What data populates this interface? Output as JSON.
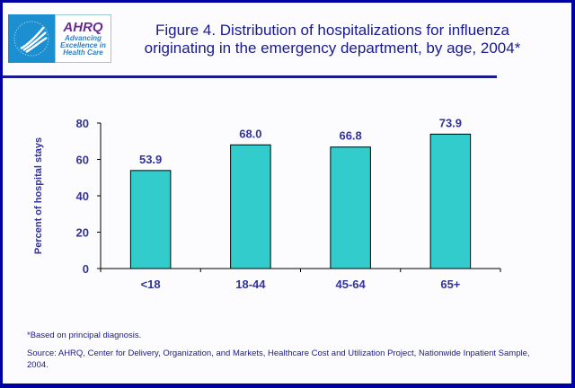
{
  "header": {
    "logo_text": "AHRQ Advancing Excellence in Health Care",
    "title": "Figure 4. Distribution of hospitalizations for influenza originating in the emergency department, by age, 2004*"
  },
  "chart_data": {
    "type": "bar",
    "title": "Figure 4. Distribution of hospitalizations for influenza originating in the emergency department, by age, 2004*",
    "xlabel": "",
    "ylabel": "Percent of hospital stays",
    "categories": [
      "<18",
      "18-44",
      "45-64",
      "65+"
    ],
    "values": [
      53.9,
      68.0,
      66.8,
      73.9
    ],
    "value_labels": [
      "53.9",
      "68.0",
      "66.8",
      "73.9"
    ],
    "ylim": [
      0,
      80
    ],
    "yticks": [
      0,
      20,
      40,
      60,
      80
    ],
    "grid": false,
    "colors": {
      "bar": "#33cccc",
      "text": "#333399",
      "border": "#0000a0"
    }
  },
  "footnotes": {
    "note": "*Based on principal diagnosis.",
    "source": "Source: AHRQ, Center for Delivery, Organization, and Markets, Healthcare Cost and Utilization Project, Nationwide Inpatient Sample, 2004."
  }
}
